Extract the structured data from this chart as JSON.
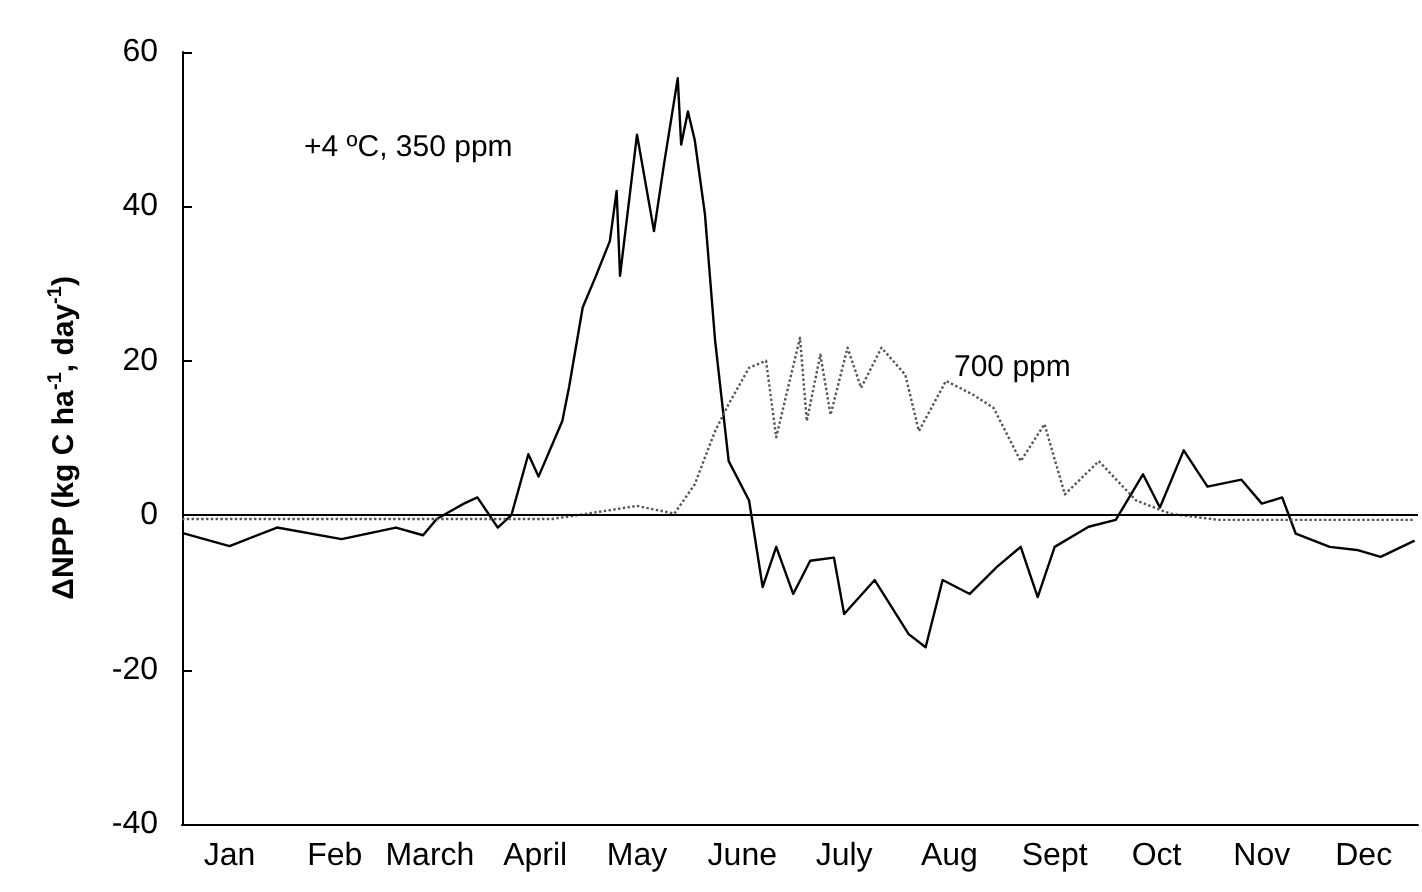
{
  "chart_data": {
    "type": "line",
    "ylabel": "ΔNPP (kg C ha$^{-1}$, day$^{-1}$)",
    "xlim": [
      "--01-01",
      "--12-31"
    ],
    "xticks": [
      {
        "value": "--01-15",
        "label": "Jan"
      },
      {
        "value": "--02-15",
        "label": "Feb"
      },
      {
        "value": "--03-15",
        "label": "March"
      },
      {
        "value": "--04-15",
        "label": "April"
      },
      {
        "value": "--05-15",
        "label": "May"
      },
      {
        "value": "--06-15",
        "label": "June"
      },
      {
        "value": "--07-15",
        "label": "July"
      },
      {
        "value": "--08-15",
        "label": "Aug"
      },
      {
        "value": "--09-15",
        "label": "Sept"
      },
      {
        "value": "--10-15",
        "label": "Oct"
      },
      {
        "value": "--11-15",
        "label": "Nov"
      },
      {
        "value": "--12-15",
        "label": "Dec"
      }
    ],
    "ylim": [
      -40,
      60
    ],
    "yticks": [
      -40,
      -20,
      0,
      20,
      40,
      60
    ],
    "grid": false,
    "marker": "none",
    "ref_lines": [
      {
        "axis": "y",
        "value": 0,
        "color": "#000000"
      }
    ],
    "annotations": [
      "+4 ºC, 350 ppm",
      "700 ppm"
    ],
    "series": [
      {
        "color": "#000000",
        "line_style": "solid",
        "x": [
          "--01-01",
          "--01-15",
          "--01-29",
          "--02-17",
          "--03-05",
          "--03-13",
          "--03-17",
          "--03-25",
          "--03-29",
          "--04-04",
          "--04-08",
          "--04-13",
          "--04-16",
          "--04-23",
          "--04-25",
          "--04-29",
          "--05-03",
          "--05-07",
          "--05-09",
          "--05-10",
          "--05-15",
          "--05-20",
          "--05-23",
          "--05-27",
          "--05-28",
          "--05-30",
          "--06-01",
          "--06-04",
          "--06-07",
          "--06-11",
          "--06-17",
          "--06-21",
          "--06-25",
          "--06-30",
          "--07-05",
          "--07-12",
          "--07-15",
          "--07-24",
          "--08-03",
          "--08-08",
          "--08-13",
          "--08-21",
          "--08-29",
          "--09-05",
          "--09-10",
          "--09-15",
          "--09-25",
          "--10-03",
          "--10-11",
          "--10-16",
          "--10-23",
          "--10-30",
          "--11-09",
          "--11-15",
          "--11-21",
          "--11-25",
          "--12-05",
          "--12-13",
          "--12-20",
          "--12-30"
        ],
        "values": [
          -2.3,
          -4,
          -1.6,
          -3.1,
          -1.6,
          -2.6,
          -0.5,
          1.5,
          2.3,
          -1.6,
          0,
          7.9,
          5,
          12.2,
          16.6,
          26.9,
          31.1,
          35.5,
          42,
          31,
          49.3,
          36.8,
          45.6,
          56.6,
          48,
          52.3,
          48.6,
          39,
          22.6,
          7,
          1.9,
          -9.3,
          -4.1,
          -10.2,
          -5.9,
          -5.5,
          -12.8,
          -8.4,
          -15.4,
          -17.1,
          -8.4,
          -10.2,
          -6.7,
          -4.1,
          -10.6,
          -4.1,
          -1.5,
          -0.6,
          5.3,
          1,
          8.4,
          3.7,
          4.6,
          1.5,
          2.3,
          -2.4,
          -4.1,
          -4.5,
          -5.4,
          -3.3
        ]
      },
      {
        "color": "#555555",
        "line_style": "dotted",
        "x": [
          "--01-01",
          "--03-01",
          "--04-20",
          "--05-15",
          "--05-26",
          "--06-01",
          "--06-07",
          "--06-11",
          "--06-17",
          "--06-22",
          "--06-25",
          "--07-02",
          "--07-04",
          "--07-08",
          "--07-11",
          "--07-16",
          "--07-20",
          "--07-26",
          "--08-02",
          "--08-06",
          "--08-14",
          "--08-22",
          "--08-28",
          "--09-05",
          "--09-12",
          "--09-18",
          "--09-28",
          "--10-09",
          "--10-19",
          "--11-02",
          "--11-21",
          "--12-30"
        ],
        "values": [
          -0.5,
          -0.5,
          -0.5,
          1.2,
          0.2,
          4,
          10.9,
          14.4,
          19.1,
          20,
          10.1,
          23,
          12.2,
          20.8,
          13,
          21.7,
          16.5,
          21.7,
          18.2,
          10.9,
          17.4,
          15.6,
          13.9,
          7,
          11.8,
          2.7,
          7,
          1.9,
          0.2,
          -0.6,
          -0.6,
          -0.6
        ]
      }
    ]
  }
}
